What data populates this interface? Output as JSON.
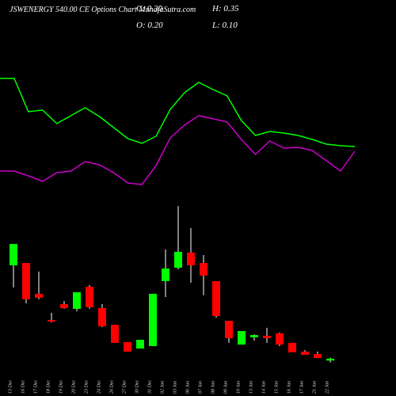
{
  "chart_data": {
    "type": "candlestick",
    "title": "JSWENERGY 540.00 CE Options Chart MunafaSutra.com",
    "ohlc_labels": [
      "C: 0.30",
      "H: 0.35",
      "O: 0.20",
      "L: 0.10"
    ],
    "categories": [
      "13 Dec",
      "16 Dec",
      "17 Dec",
      "18 Dec",
      "19 Dec",
      "20 Dec",
      "23 Dec",
      "24 Dec",
      "26 Dec",
      "27 Dec",
      "30 Dec",
      "31 Dec",
      "02 Jan",
      "03 Jan",
      "06 Jan",
      "07 Jan",
      "08 Jan",
      "09 Jan",
      "10 Jan",
      "13 Jan",
      "14 Jan",
      "15 Jan",
      "16 Jan",
      "17 Jan",
      "21 Jan",
      "22 Jan"
    ],
    "open": [
      5.21,
      5.33,
      3.71,
      2.33,
      3.17,
      2.92,
      4.08,
      2.96,
      2.08,
      1.17,
      0.83,
      0.96,
      4.38,
      5.08,
      5.88,
      5.33,
      4.38,
      2.29,
      1.04,
      1.42,
      1.5,
      1.63,
      1.13,
      0.67,
      0.54,
      0.2
    ],
    "high": [
      6.33,
      5.33,
      4.88,
      2.71,
      3.33,
      3.79,
      4.17,
      3.17,
      2.08,
      1.17,
      1.29,
      3.71,
      6.04,
      8.33,
      7.17,
      5.75,
      4.38,
      2.29,
      1.75,
      1.58,
      1.92,
      1.67,
      1.13,
      0.75,
      0.67,
      0.35
    ],
    "low": [
      4.04,
      3.21,
      3.42,
      2.21,
      2.92,
      2.79,
      2.92,
      1.96,
      1.13,
      0.67,
      0.83,
      0.96,
      3.54,
      5.0,
      4.29,
      3.63,
      2.46,
      1.13,
      1.04,
      1.25,
      1.13,
      0.96,
      0.63,
      0.5,
      0.33,
      0.1
    ],
    "close": [
      6.33,
      3.42,
      3.5,
      2.25,
      2.96,
      3.79,
      3.0,
      2.0,
      1.13,
      0.67,
      1.29,
      3.71,
      5.04,
      5.92,
      5.21,
      4.67,
      2.54,
      1.38,
      1.75,
      1.54,
      1.38,
      1.04,
      0.63,
      0.5,
      0.33,
      0.3
    ],
    "up_color": "#00ff00",
    "down_color": "#ff0000",
    "ylim": [
      0,
      20
    ],
    "series": [
      {
        "color": "#00ff00",
        "axis": "y2",
        "values": [
          10.05,
          10.05,
          7.95,
          8.05,
          7.2,
          7.7,
          8.2,
          7.65,
          6.95,
          6.25,
          5.95,
          6.4,
          8.1,
          9.15,
          9.8,
          9.35,
          8.95,
          7.4,
          6.45,
          6.7,
          6.6,
          6.45,
          6.2,
          5.9,
          5.8,
          5.75
        ]
      },
      {
        "color": "#cc00cc",
        "axis": "y2",
        "values": [
          4.2,
          4.2,
          3.9,
          3.55,
          4.1,
          4.2,
          4.8,
          4.6,
          4.1,
          3.45,
          3.35,
          4.55,
          6.3,
          7.1,
          7.7,
          7.5,
          7.3,
          6.2,
          5.25,
          6.1,
          5.65,
          5.7,
          5.5,
          4.85,
          4.2,
          5.45
        ]
      }
    ],
    "y2lim": [
      0,
      15
    ]
  }
}
